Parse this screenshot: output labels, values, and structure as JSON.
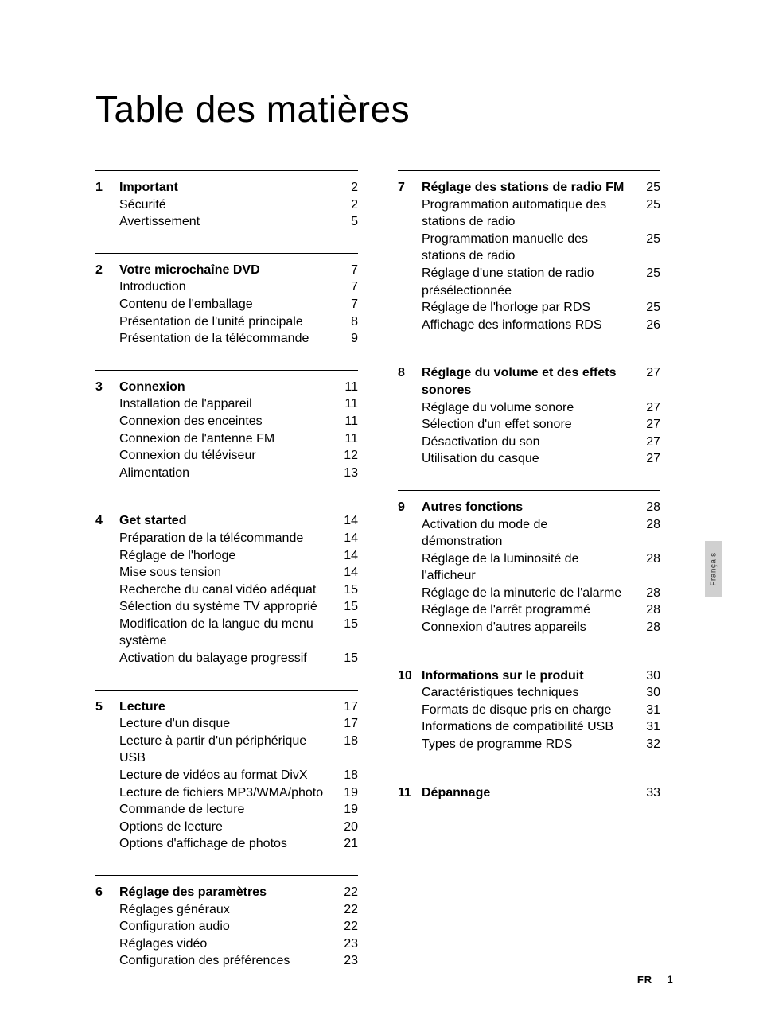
{
  "title": "Table des matières",
  "side_tab": "Français",
  "footer": {
    "lang": "FR",
    "page": "1"
  },
  "colors": {
    "bg": "#ffffff",
    "text": "#000000",
    "tab_bg": "#d0d0d0",
    "tab_text": "#333333",
    "rule": "#000000"
  },
  "typography": {
    "title_size": 46,
    "body_size": 16,
    "footer_size": 13,
    "tab_size": 10
  },
  "left": [
    {
      "num": "1",
      "head": {
        "label": "Important",
        "page": "2"
      },
      "items": [
        {
          "label": "Sécurité",
          "page": "2"
        },
        {
          "label": "Avertissement",
          "page": "5"
        }
      ]
    },
    {
      "num": "2",
      "head": {
        "label": "Votre microchaîne DVD",
        "page": "7"
      },
      "items": [
        {
          "label": "Introduction",
          "page": "7"
        },
        {
          "label": "Contenu de l'emballage",
          "page": "7"
        },
        {
          "label": "Présentation de l'unité principale",
          "page": "8"
        },
        {
          "label": "Présentation de la télécommande",
          "page": "9"
        }
      ]
    },
    {
      "num": "3",
      "head": {
        "label": "Connexion",
        "page": "11"
      },
      "items": [
        {
          "label": "Installation de l'appareil",
          "page": "11"
        },
        {
          "label": "Connexion des enceintes",
          "page": "11"
        },
        {
          "label": "Connexion de l'antenne FM",
          "page": "11"
        },
        {
          "label": "Connexion du téléviseur",
          "page": "12"
        },
        {
          "label": "Alimentation",
          "page": "13"
        }
      ]
    },
    {
      "num": "4",
      "head": {
        "label": "Get started",
        "page": "14"
      },
      "items": [
        {
          "label": "Préparation de la télécommande",
          "page": "14"
        },
        {
          "label": "Réglage de l'horloge",
          "page": "14"
        },
        {
          "label": "Mise sous tension",
          "page": "14"
        },
        {
          "label": "Recherche du canal vidéo adéquat",
          "page": "15"
        },
        {
          "label": "Sélection du système TV approprié",
          "page": "15"
        },
        {
          "label": "Modification de la langue du menu système",
          "page": "15"
        },
        {
          "label": "Activation du balayage progressif",
          "page": "15"
        }
      ]
    },
    {
      "num": "5",
      "head": {
        "label": "Lecture",
        "page": "17"
      },
      "items": [
        {
          "label": "Lecture d'un disque",
          "page": "17"
        },
        {
          "label": "Lecture à partir d'un périphérique USB",
          "page": "18"
        },
        {
          "label": "Lecture de vidéos au format DivX",
          "page": "18"
        },
        {
          "label": "Lecture de fichiers MP3/WMA/photo",
          "page": "19"
        },
        {
          "label": "Commande de lecture",
          "page": "19"
        },
        {
          "label": "Options de lecture",
          "page": "20"
        },
        {
          "label": "Options d'affichage de photos",
          "page": "21"
        }
      ]
    },
    {
      "num": "6",
      "head": {
        "label": "Réglage des paramètres",
        "page": "22"
      },
      "items": [
        {
          "label": "Réglages généraux",
          "page": "22"
        },
        {
          "label": "Configuration audio",
          "page": "22"
        },
        {
          "label": "Réglages vidéo",
          "page": "23"
        },
        {
          "label": "Configuration des préférences",
          "page": "23"
        }
      ]
    }
  ],
  "right": [
    {
      "num": "7",
      "head": {
        "label": "Réglage des stations de radio FM",
        "page": "25"
      },
      "items": [
        {
          "label": "Programmation automatique des stations de radio",
          "page": "25"
        },
        {
          "label": "Programmation manuelle des stations de radio",
          "page": "25"
        },
        {
          "label": "Réglage d'une station de radio présélectionnée",
          "page": "25"
        },
        {
          "label": "Réglage de l'horloge par RDS",
          "page": "25"
        },
        {
          "label": "Affichage des informations RDS",
          "page": "26"
        }
      ]
    },
    {
      "num": "8",
      "head": {
        "label": "Réglage du volume et des effets sonores",
        "page": "27"
      },
      "items": [
        {
          "label": "Réglage du volume sonore",
          "page": "27"
        },
        {
          "label": "Sélection d'un effet sonore",
          "page": "27"
        },
        {
          "label": "Désactivation du son",
          "page": "27"
        },
        {
          "label": "Utilisation du casque",
          "page": "27"
        }
      ]
    },
    {
      "num": "9",
      "head": {
        "label": "Autres fonctions",
        "page": "28"
      },
      "items": [
        {
          "label": "Activation du mode de démonstration",
          "page": "28"
        },
        {
          "label": "Réglage de la luminosité de l'afficheur",
          "page": "28"
        },
        {
          "label": "Réglage de la minuterie de l'alarme",
          "page": "28"
        },
        {
          "label": "Réglage de l'arrêt programmé",
          "page": "28"
        },
        {
          "label": "Connexion d'autres appareils",
          "page": "28"
        }
      ]
    },
    {
      "num": "10",
      "head": {
        "label": "Informations sur le produit",
        "page": "30"
      },
      "items": [
        {
          "label": "Caractéristiques techniques",
          "page": "30"
        },
        {
          "label": "Formats de disque pris en charge",
          "page": "31"
        },
        {
          "label": "Informations de compatibilité USB",
          "page": "31"
        },
        {
          "label": "Types de programme RDS",
          "page": "32"
        }
      ]
    },
    {
      "num": "11",
      "head": {
        "label": "Dépannage",
        "page": "33"
      },
      "items": []
    }
  ]
}
